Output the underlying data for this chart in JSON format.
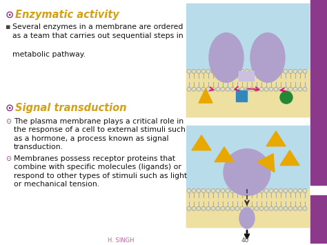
{
  "bg_color": "#ffffff",
  "right_bar_color": "#8b3a8b",
  "title1": "Enzymatic activity",
  "title1_color": "#d4a017",
  "title1_bullet_color": "#8b3a8b",
  "body1": [
    "Several enzymes in a membrane are ordered",
    "as a team that carries out sequential steps in",
    "",
    "metabolic pathway."
  ],
  "title2": "Signal transduction",
  "title2_color": "#d4a017",
  "title2_bullet_color": "#8b3a8b",
  "body2a": [
    "The plasma membrane plays a critical role in",
    "the response of a cell to external stimuli such",
    "as a hormone, a process known as signal",
    "transduction."
  ],
  "body2b": [
    "Membranes possess receptor proteins that",
    "combine with specific molecules (ligands) or",
    "respond to other types of stimuli such as light",
    "or mechanical tension."
  ],
  "footer_author": "H. SINGH",
  "footer_page": "40",
  "footer_color": "#c060a0",
  "img1_bg": "#b8dcea",
  "img1_sand": "#ede0a0",
  "img2_bg": "#b8dcea",
  "img2_sand": "#ede0a0",
  "protein_color": "#b0a0cc",
  "gold_color": "#e8a800",
  "text_color": "#111111",
  "bullet_color": "#8b3a8b",
  "pink_arrow": "#dd1166",
  "membrane_head": "#ddddcc",
  "membrane_line": "#aaaaaa"
}
